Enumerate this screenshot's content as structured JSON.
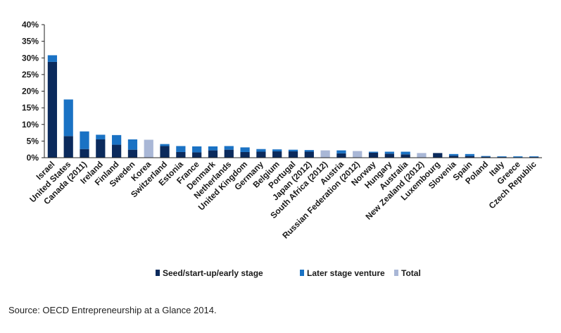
{
  "source": "Source: OECD Entrepreneurship at a Glance 2014.",
  "colors": {
    "seed": "#0b2a5c",
    "later": "#1a72c4",
    "total": "#a9b7d6",
    "axis": "#222222"
  },
  "chart_data": {
    "type": "bar",
    "stacked": true,
    "title": "",
    "xlabel": "",
    "ylabel": "",
    "ylim": [
      0,
      40
    ],
    "yticks": [
      0,
      5,
      10,
      15,
      20,
      25,
      30,
      35,
      40
    ],
    "ytick_labels": [
      "0%",
      "5%",
      "10%",
      "15%",
      "20%",
      "25%",
      "30%",
      "35%",
      "40%"
    ],
    "grid": false,
    "legend_position": "bottom",
    "categories": [
      "Israel",
      "United States",
      "Canada (2011)",
      "Ireland",
      "Finland",
      "Sweden",
      "Korea",
      "Switzerland",
      "Estonia",
      "France",
      "Denmark",
      "Netherlands",
      "United Kingdom",
      "Germany",
      "Belgium",
      "Portugal",
      "Japan (2012)",
      "South Africa (2012)",
      "Austria",
      "Russian Federation (2012)",
      "Norway",
      "Hungary",
      "Australia",
      "New Zealand (2012)",
      "Luxembourg",
      "Slovenia",
      "Spain",
      "Poland",
      "Italy",
      "Greece",
      "Czech Republic"
    ],
    "series": [
      {
        "name": "Seed/start-up/early stage",
        "values": [
          28.8,
          6.5,
          2.6,
          5.5,
          3.9,
          2.4,
          null,
          3.5,
          1.7,
          1.6,
          2.2,
          2.4,
          1.7,
          1.8,
          1.9,
          1.9,
          1.8,
          null,
          1.3,
          null,
          1.5,
          1.2,
          1.0,
          null,
          1.4,
          0.6,
          0.5,
          0.3,
          0.2,
          0.1,
          0.2
        ]
      },
      {
        "name": "Later stage venture",
        "values": [
          2.0,
          11.0,
          5.3,
          1.4,
          2.9,
          3.1,
          null,
          0.6,
          1.8,
          1.8,
          1.2,
          1.1,
          1.4,
          0.8,
          0.6,
          0.5,
          0.5,
          null,
          0.9,
          null,
          0.3,
          0.6,
          0.8,
          null,
          0.0,
          0.5,
          0.6,
          0.2,
          0.2,
          0.3,
          0.2
        ]
      },
      {
        "name": "Total",
        "values": [
          null,
          null,
          null,
          null,
          null,
          null,
          5.4,
          null,
          null,
          null,
          null,
          null,
          null,
          null,
          null,
          null,
          null,
          2.2,
          null,
          2.0,
          null,
          null,
          null,
          1.4,
          null,
          null,
          null,
          null,
          null,
          null,
          null
        ]
      }
    ]
  }
}
